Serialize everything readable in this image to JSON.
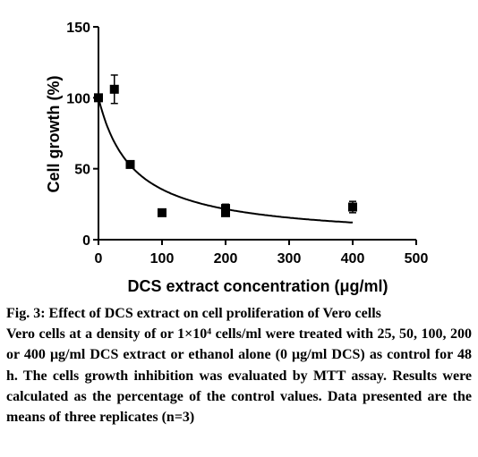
{
  "chart_data": {
    "type": "scatter",
    "xlabel": "DCS extract concentration (μg/ml)",
    "ylabel": "Cell growth (%)",
    "xlim": [
      0,
      500
    ],
    "ylim": [
      0,
      150
    ],
    "xticks": [
      0,
      100,
      200,
      300,
      400,
      500
    ],
    "yticks": [
      0,
      50,
      100,
      150
    ],
    "grid": false,
    "series": [
      {
        "marker": "square",
        "color": "#000000",
        "points": [
          {
            "x": 0,
            "y": 100
          },
          {
            "x": 25,
            "y": 106,
            "err": 10
          },
          {
            "x": 50,
            "y": 53
          },
          {
            "x": 100,
            "y": 19
          },
          {
            "x": 200,
            "y": 22,
            "err": 3
          },
          {
            "x": 200,
            "y": 19
          },
          {
            "x": 400,
            "y": 23,
            "err": 4
          }
        ]
      }
    ],
    "fit_curve": {
      "type": "hyperbolic-decay",
      "y0": 100,
      "k": 55,
      "x_range": [
        0,
        400
      ]
    }
  },
  "caption": {
    "title": "Fig. 3: Effect of DCS extract on cell proliferation of Vero cells",
    "body": "Vero cells at a density of or 1×10⁴ cells/ml were treated with 25, 50, 100, 200 or 400 μg/ml DCS extract or ethanol alone (0 μg/ml DCS) as control for 48 h. The cells growth inhibition was evaluated by MTT assay. Results were calculated as the percentage of the control values. Data presented are the means of three replicates (n=3)"
  }
}
